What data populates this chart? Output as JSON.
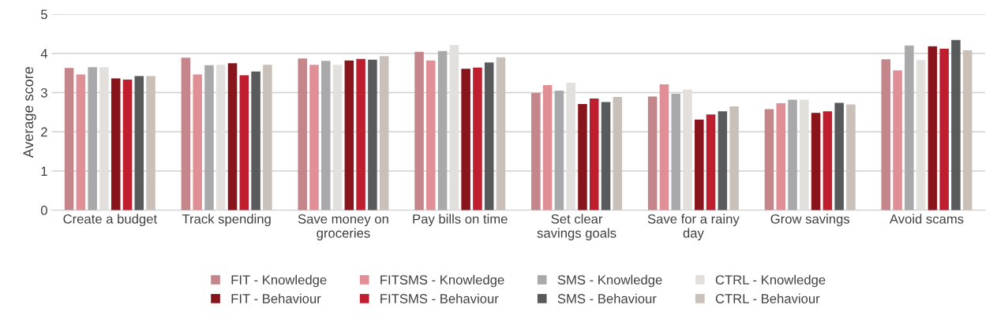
{
  "chart_data": {
    "type": "bar",
    "ylabel": "Average score",
    "categories": [
      "Create a budget",
      "Track spending",
      "Save money on\ngroceries",
      "Pay bills on time",
      "Set clear\nsavings goals",
      "Save for a rainy\nday",
      "Grow savings",
      "Avoid scams"
    ],
    "series": [
      {
        "name": "FIT - Knowledge",
        "color": "#c4868a",
        "values": [
          3.63,
          3.89,
          3.87,
          4.04,
          2.99,
          2.9,
          2.58,
          3.85
        ]
      },
      {
        "name": "FITSMS - Knowledge",
        "color": "#e08f96",
        "values": [
          3.46,
          3.46,
          3.71,
          3.82,
          3.19,
          3.21,
          2.73,
          3.57
        ]
      },
      {
        "name": "SMS - Knowledge",
        "color": "#a9a9ab",
        "values": [
          3.65,
          3.7,
          3.81,
          4.06,
          3.05,
          2.97,
          2.82,
          4.2
        ]
      },
      {
        "name": "CTRL - Knowledge",
        "color": "#e3dfdc",
        "values": [
          3.65,
          3.71,
          3.71,
          4.21,
          3.25,
          3.08,
          2.82,
          3.83
        ]
      },
      {
        "name": "FIT - Behaviour",
        "color": "#87151b",
        "values": [
          3.36,
          3.75,
          3.82,
          3.61,
          2.71,
          2.31,
          2.48,
          4.18
        ]
      },
      {
        "name": "FITSMS - Behaviour",
        "color": "#be1e2d",
        "values": [
          3.33,
          3.44,
          3.86,
          3.64,
          2.85,
          2.44,
          2.52,
          4.12
        ]
      },
      {
        "name": "SMS - Behaviour",
        "color": "#595a5c",
        "values": [
          3.42,
          3.54,
          3.84,
          3.77,
          2.76,
          2.52,
          2.74,
          4.34
        ]
      },
      {
        "name": "CTRL - Behaviour",
        "color": "#c9c0b9",
        "values": [
          3.42,
          3.71,
          3.93,
          3.9,
          2.89,
          2.65,
          2.7,
          4.08
        ]
      }
    ],
    "ylim": [
      0,
      5
    ],
    "yticks": [
      0,
      1,
      2,
      3,
      4,
      5
    ],
    "grid": "y",
    "legend": "bottom"
  }
}
